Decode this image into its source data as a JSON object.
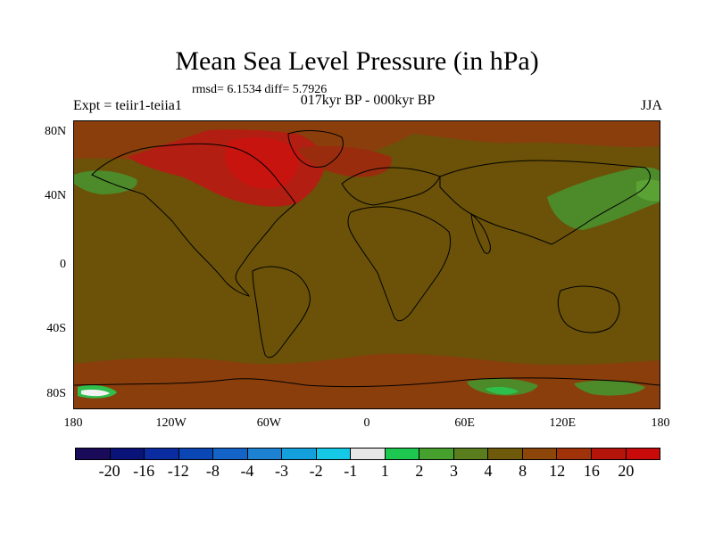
{
  "title": "Mean Sea Level Pressure (in hPa)",
  "stats": "rmsd= 6.1534 diff= 5.7926",
  "experiment": "Expt = teiir1-teiia1",
  "period": "017kyr BP - 000kyr BP",
  "season": "JJA",
  "y_ticks": [
    "80N",
    "40N",
    "0",
    "40S",
    "80S"
  ],
  "x_ticks": [
    "180",
    "120W",
    "60W",
    "0",
    "60E",
    "120E",
    "180"
  ],
  "colorbar": {
    "colors": [
      "#1a0a5a",
      "#0a1478",
      "#0a2ca0",
      "#0a46b4",
      "#1464c8",
      "#1e82d2",
      "#14a0dc",
      "#14c8e6",
      "#e6e6e6",
      "#1ec850",
      "#46a02d",
      "#5a7d1e",
      "#6e5a0a",
      "#8c460a",
      "#a0320a",
      "#b4140a",
      "#c80a0a"
    ],
    "labels": [
      "-20",
      "-16",
      "-12",
      "-8",
      "-4",
      "-3",
      "-2",
      "-1",
      "1",
      "2",
      "3",
      "4",
      "8",
      "12",
      "16",
      "20"
    ]
  },
  "palette": {
    "base": "#6b5208",
    "mid": "#8a3e0c",
    "high": "#b21e12",
    "green": "#4d8a2a",
    "lightgreen": "#2fbf4c",
    "white": "#f2f2f2",
    "coast": "#000000"
  }
}
